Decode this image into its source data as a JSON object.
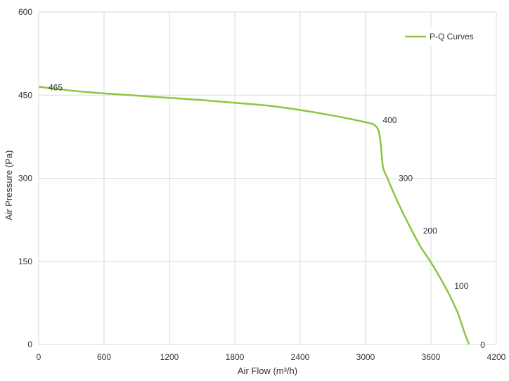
{
  "chart_data": {
    "type": "line",
    "title": "",
    "xlabel": "Air Flow  (m³/h)",
    "ylabel": "Air Pressure  (Pa)",
    "xlim": [
      0,
      4200
    ],
    "ylim": [
      0,
      600
    ],
    "xticks": [
      0,
      600,
      1200,
      1800,
      2400,
      3000,
      3600,
      4200
    ],
    "yticks": [
      0,
      150,
      300,
      450,
      600
    ],
    "grid": true,
    "legend_position": "top-right",
    "line_color": "#8cc63f",
    "series": [
      {
        "name": "P-Q Curves",
        "points": [
          [
            0,
            465
          ],
          [
            300,
            458
          ],
          [
            600,
            453
          ],
          [
            900,
            449
          ],
          [
            1200,
            445
          ],
          [
            1500,
            441
          ],
          [
            1800,
            436
          ],
          [
            2100,
            431
          ],
          [
            2400,
            423
          ],
          [
            2700,
            413
          ],
          [
            3000,
            401
          ],
          [
            3080,
            396
          ],
          [
            3120,
            385
          ],
          [
            3140,
            360
          ],
          [
            3160,
            320
          ],
          [
            3200,
            300
          ],
          [
            3300,
            255
          ],
          [
            3400,
            215
          ],
          [
            3500,
            178
          ],
          [
            3600,
            148
          ],
          [
            3700,
            115
          ],
          [
            3780,
            85
          ],
          [
            3850,
            55
          ],
          [
            3910,
            20
          ],
          [
            3950,
            0
          ]
        ],
        "labels": [
          {
            "x": 0,
            "y": 465,
            "text": "465"
          },
          {
            "x": 3080,
            "y": 396,
            "text": "400"
          },
          {
            "x": 3200,
            "y": 300,
            "text": "300"
          },
          {
            "x": 3450,
            "y": 200,
            "text": "200"
          },
          {
            "x": 3750,
            "y": 100,
            "text": "100"
          },
          {
            "x": 3950,
            "y": 0,
            "text": "0"
          }
        ]
      }
    ]
  }
}
